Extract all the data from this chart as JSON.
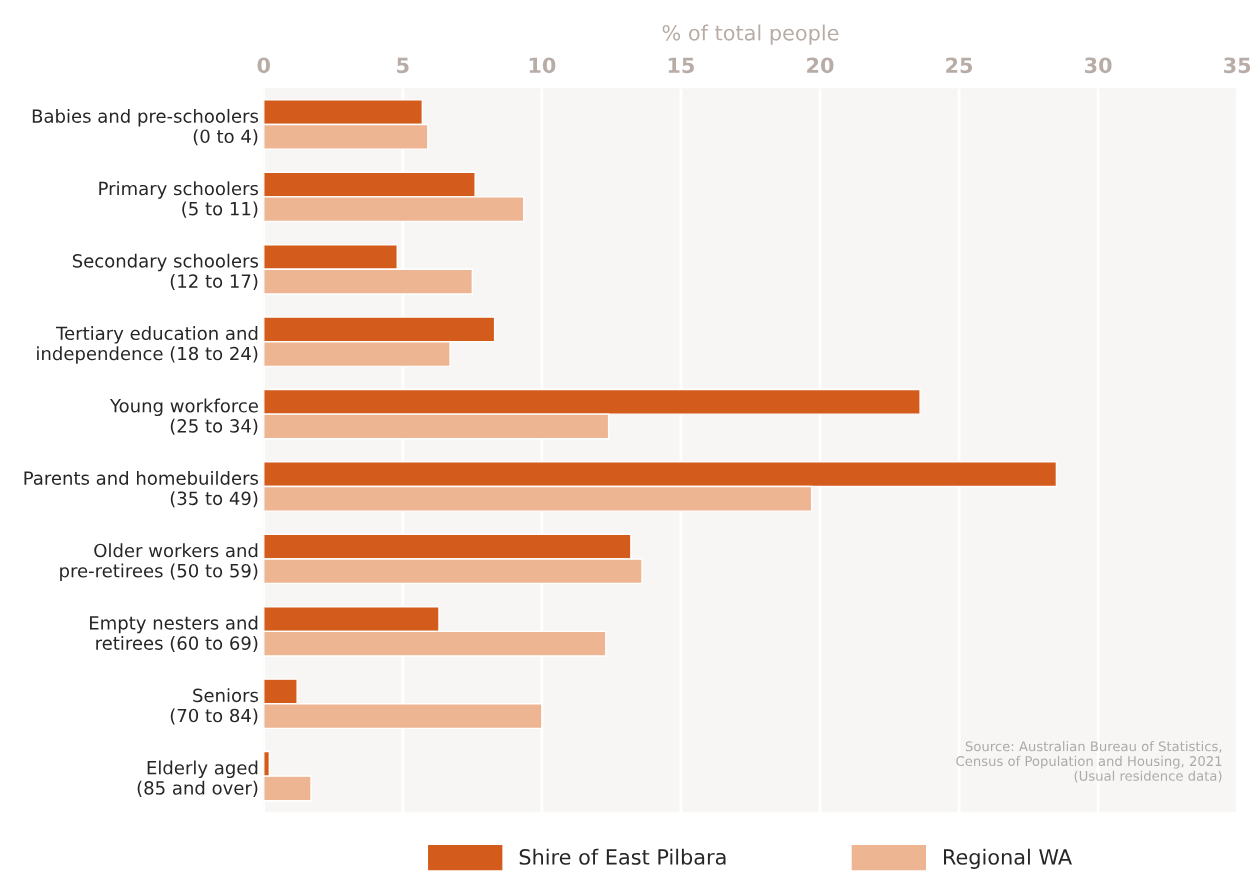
{
  "chart_data": {
    "type": "bar",
    "orientation": "horizontal",
    "xlabel": "% of total people",
    "categories": [
      "Babies and pre-schoolers\n(0 to 4)",
      "Primary schoolers\n(5 to 11)",
      "Secondary schoolers\n(12 to 17)",
      "Tertiary education and\nindependence (18 to 24)",
      "Young workforce\n(25 to 34)",
      "Parents and homebuilders\n(35 to 49)",
      "Older workers and\npre-retirees (50 to 59)",
      "Empty nesters and\nretirees (60 to 69)",
      "Seniors\n(70 to 84)",
      "Elderly aged\n(85 and over)"
    ],
    "series": [
      {
        "name": "Shire of East Pilbara",
        "color": "#d35b1b",
        "values": [
          5.7,
          7.6,
          4.8,
          8.3,
          23.6,
          28.5,
          13.2,
          6.3,
          1.2,
          0.2
        ]
      },
      {
        "name": "Regional WA",
        "color": "#eeb592",
        "values": [
          5.9,
          9.35,
          7.5,
          6.7,
          12.4,
          19.7,
          13.6,
          12.3,
          10.0,
          1.7
        ]
      }
    ],
    "xlim": [
      0,
      35
    ],
    "xticks": [
      0,
      5,
      10,
      15,
      20,
      25,
      30,
      35
    ],
    "grid": "x",
    "legend": "bottom",
    "annotations": [
      "Source: Australian Bureau of Statistics,\nCensus of Population and Housing, 2021\n(Usual residence data)"
    ]
  }
}
